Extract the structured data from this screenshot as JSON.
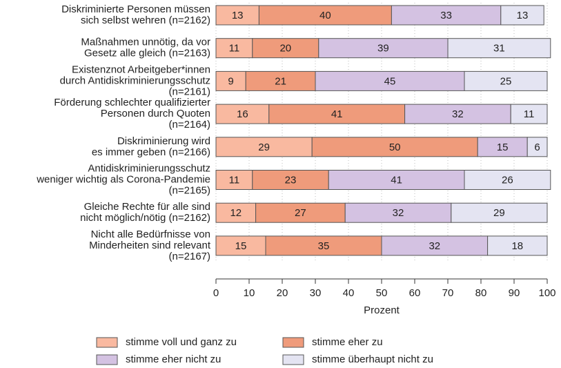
{
  "chart_data": {
    "type": "stacked-barh",
    "categories": [
      "Diskriminierte Personen müssen\nsich selbst wehren (n=2162)",
      "Maßnahmen unnötig, da vor\nGesetz alle gleich (n=2163)",
      "Existenznot Arbeitgeber*innen\ndurch Antidiskriminierungsschutz\n(n=2161)",
      "Förderung schlechter qualifizierter\nPersonen durch Quoten\n(n=2164)",
      "Diskriminierung wird\nes immer geben (n=2166)",
      "Antidiskriminierungsschutz\nweniger wichtig als Corona-Pandemie\n(n=2165)",
      "Gleiche Rechte für alle sind\nnicht möglich/nötig (n=2162)",
      "Nicht alle Bedürfnisse von\nMinderheiten sind relevant\n(n=2167)"
    ],
    "series": [
      {
        "name": "stimme voll und ganz zu",
        "color": "#f9b9a0",
        "values": [
          13,
          11,
          9,
          16,
          29,
          11,
          12,
          15
        ]
      },
      {
        "name": "stimme eher zu",
        "color": "#ef9b7b",
        "values": [
          40,
          20,
          21,
          41,
          50,
          23,
          27,
          35
        ]
      },
      {
        "name": "stimme eher nicht zu",
        "color": "#d4c2e2",
        "values": [
          33,
          39,
          45,
          32,
          15,
          41,
          32,
          32
        ]
      },
      {
        "name": "stimme überhaupt nicht zu",
        "color": "#e4e4f2",
        "values": [
          13,
          31,
          25,
          11,
          6,
          26,
          29,
          18
        ]
      }
    ],
    "xlabel": "Prozent",
    "xlim": [
      0,
      100
    ],
    "xticks": [
      0,
      10,
      20,
      30,
      40,
      50,
      60,
      70,
      80,
      90,
      100
    ],
    "grid": true,
    "legend": "bottom"
  }
}
